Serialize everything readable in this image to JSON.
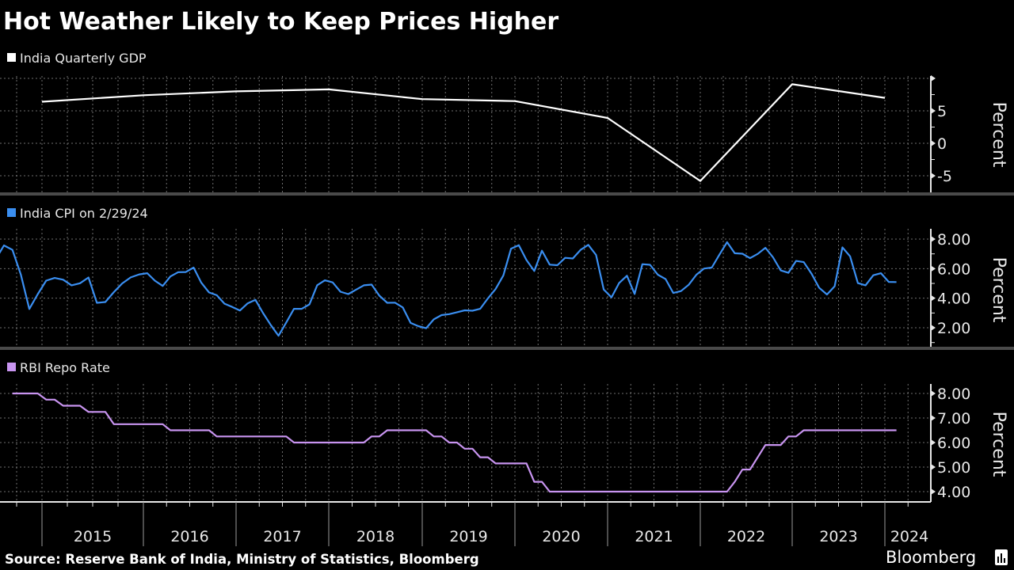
{
  "title": "Hot Weather Likely to Keep Prices Higher",
  "source": "Source: Reserve Bank of India, Ministry of Statistics, Bloomberg",
  "brand": "Bloomberg",
  "chart_data": [
    {
      "type": "line",
      "legend": "India Quarterly GDP",
      "color": "#ffffff",
      "ylabel": "Percent",
      "yticks": [
        "5",
        "0",
        "-5"
      ],
      "ylim": [
        -7.5,
        10.5
      ],
      "grid": true,
      "x": [
        "2015-01",
        "2016-01",
        "2017-01",
        "2018-01",
        "2019-01",
        "2020-01",
        "2021-01",
        "2022-01",
        "2023-01",
        "2024-01"
      ],
      "values": [
        6.4,
        7.4,
        8.0,
        8.3,
        6.8,
        6.5,
        3.9,
        -5.8,
        9.1,
        7.0
      ]
    },
    {
      "type": "line",
      "legend": "India CPI on 2/29/24",
      "color": "#3a8ef0",
      "ylabel": "Percent",
      "yticks": [
        "8.00",
        "6.00",
        "4.00",
        "2.00"
      ],
      "ylim": [
        0.7,
        8.6
      ],
      "grid": true,
      "start": "2014-07",
      "frequency": "monthly",
      "values": [
        6.6,
        7.57,
        7.27,
        5.6,
        3.27,
        4.28,
        5.19,
        5.37,
        5.25,
        4.87,
        5.01,
        5.4,
        3.69,
        3.74,
        4.41,
        5.0,
        5.41,
        5.61,
        5.69,
        5.18,
        4.83,
        5.47,
        5.76,
        5.77,
        6.07,
        5.05,
        4.39,
        4.2,
        3.63,
        3.41,
        3.17,
        3.65,
        3.89,
        2.99,
        2.18,
        1.46,
        2.36,
        3.28,
        3.28,
        3.58,
        4.88,
        5.21,
        5.07,
        4.44,
        4.28,
        4.58,
        4.87,
        4.92,
        4.17,
        3.69,
        3.7,
        3.38,
        2.33,
        2.11,
        1.97,
        2.57,
        2.86,
        2.92,
        3.05,
        3.18,
        3.15,
        3.28,
        3.99,
        4.62,
        5.54,
        7.35,
        7.59,
        6.58,
        5.84,
        7.22,
        6.27,
        6.23,
        6.73,
        6.69,
        7.27,
        7.61,
        6.93,
        4.59,
        4.06,
        5.03,
        5.52,
        4.29,
        6.3,
        6.26,
        5.59,
        5.3,
        4.35,
        4.48,
        4.91,
        5.59,
        6.01,
        6.07,
        6.95,
        7.79,
        7.04,
        7.01,
        6.71,
        7.0,
        7.41,
        6.77,
        5.88,
        5.72,
        6.52,
        6.44,
        5.66,
        4.7,
        4.25,
        4.81,
        7.44,
        6.83,
        5.02,
        4.87,
        5.55,
        5.69,
        5.1,
        5.09
      ]
    },
    {
      "type": "line",
      "legend": "RBI Repo Rate",
      "color": "#c894f0",
      "ylabel": "Percent",
      "yticks": [
        "8.00",
        "7.00",
        "6.00",
        "5.00",
        "4.00"
      ],
      "ylim": [
        3.6,
        8.4
      ],
      "grid": true,
      "end": "2024-02",
      "changes": [
        [
          "2014-09",
          8.0
        ],
        [
          "2015-01",
          7.75
        ],
        [
          "2015-03",
          7.5
        ],
        [
          "2015-06",
          7.25
        ],
        [
          "2015-09",
          6.75
        ],
        [
          "2016-04",
          6.5
        ],
        [
          "2016-10",
          6.25
        ],
        [
          "2017-08",
          6.0
        ],
        [
          "2018-06",
          6.25
        ],
        [
          "2018-08",
          6.5
        ],
        [
          "2019-02",
          6.25
        ],
        [
          "2019-04",
          6.0
        ],
        [
          "2019-06",
          5.75
        ],
        [
          "2019-08",
          5.4
        ],
        [
          "2019-10",
          5.15
        ],
        [
          "2020-03",
          4.4
        ],
        [
          "2020-05",
          4.0
        ],
        [
          "2022-05",
          4.4
        ],
        [
          "2022-06",
          4.9
        ],
        [
          "2022-08",
          5.4
        ],
        [
          "2022-09",
          5.9
        ],
        [
          "2022-12",
          6.25
        ],
        [
          "2023-02",
          6.5
        ]
      ]
    }
  ],
  "x_axis": {
    "labels": [
      "2015",
      "2016",
      "2017",
      "2018",
      "2019",
      "2020",
      "2021",
      "2022",
      "2023",
      "2024"
    ]
  }
}
